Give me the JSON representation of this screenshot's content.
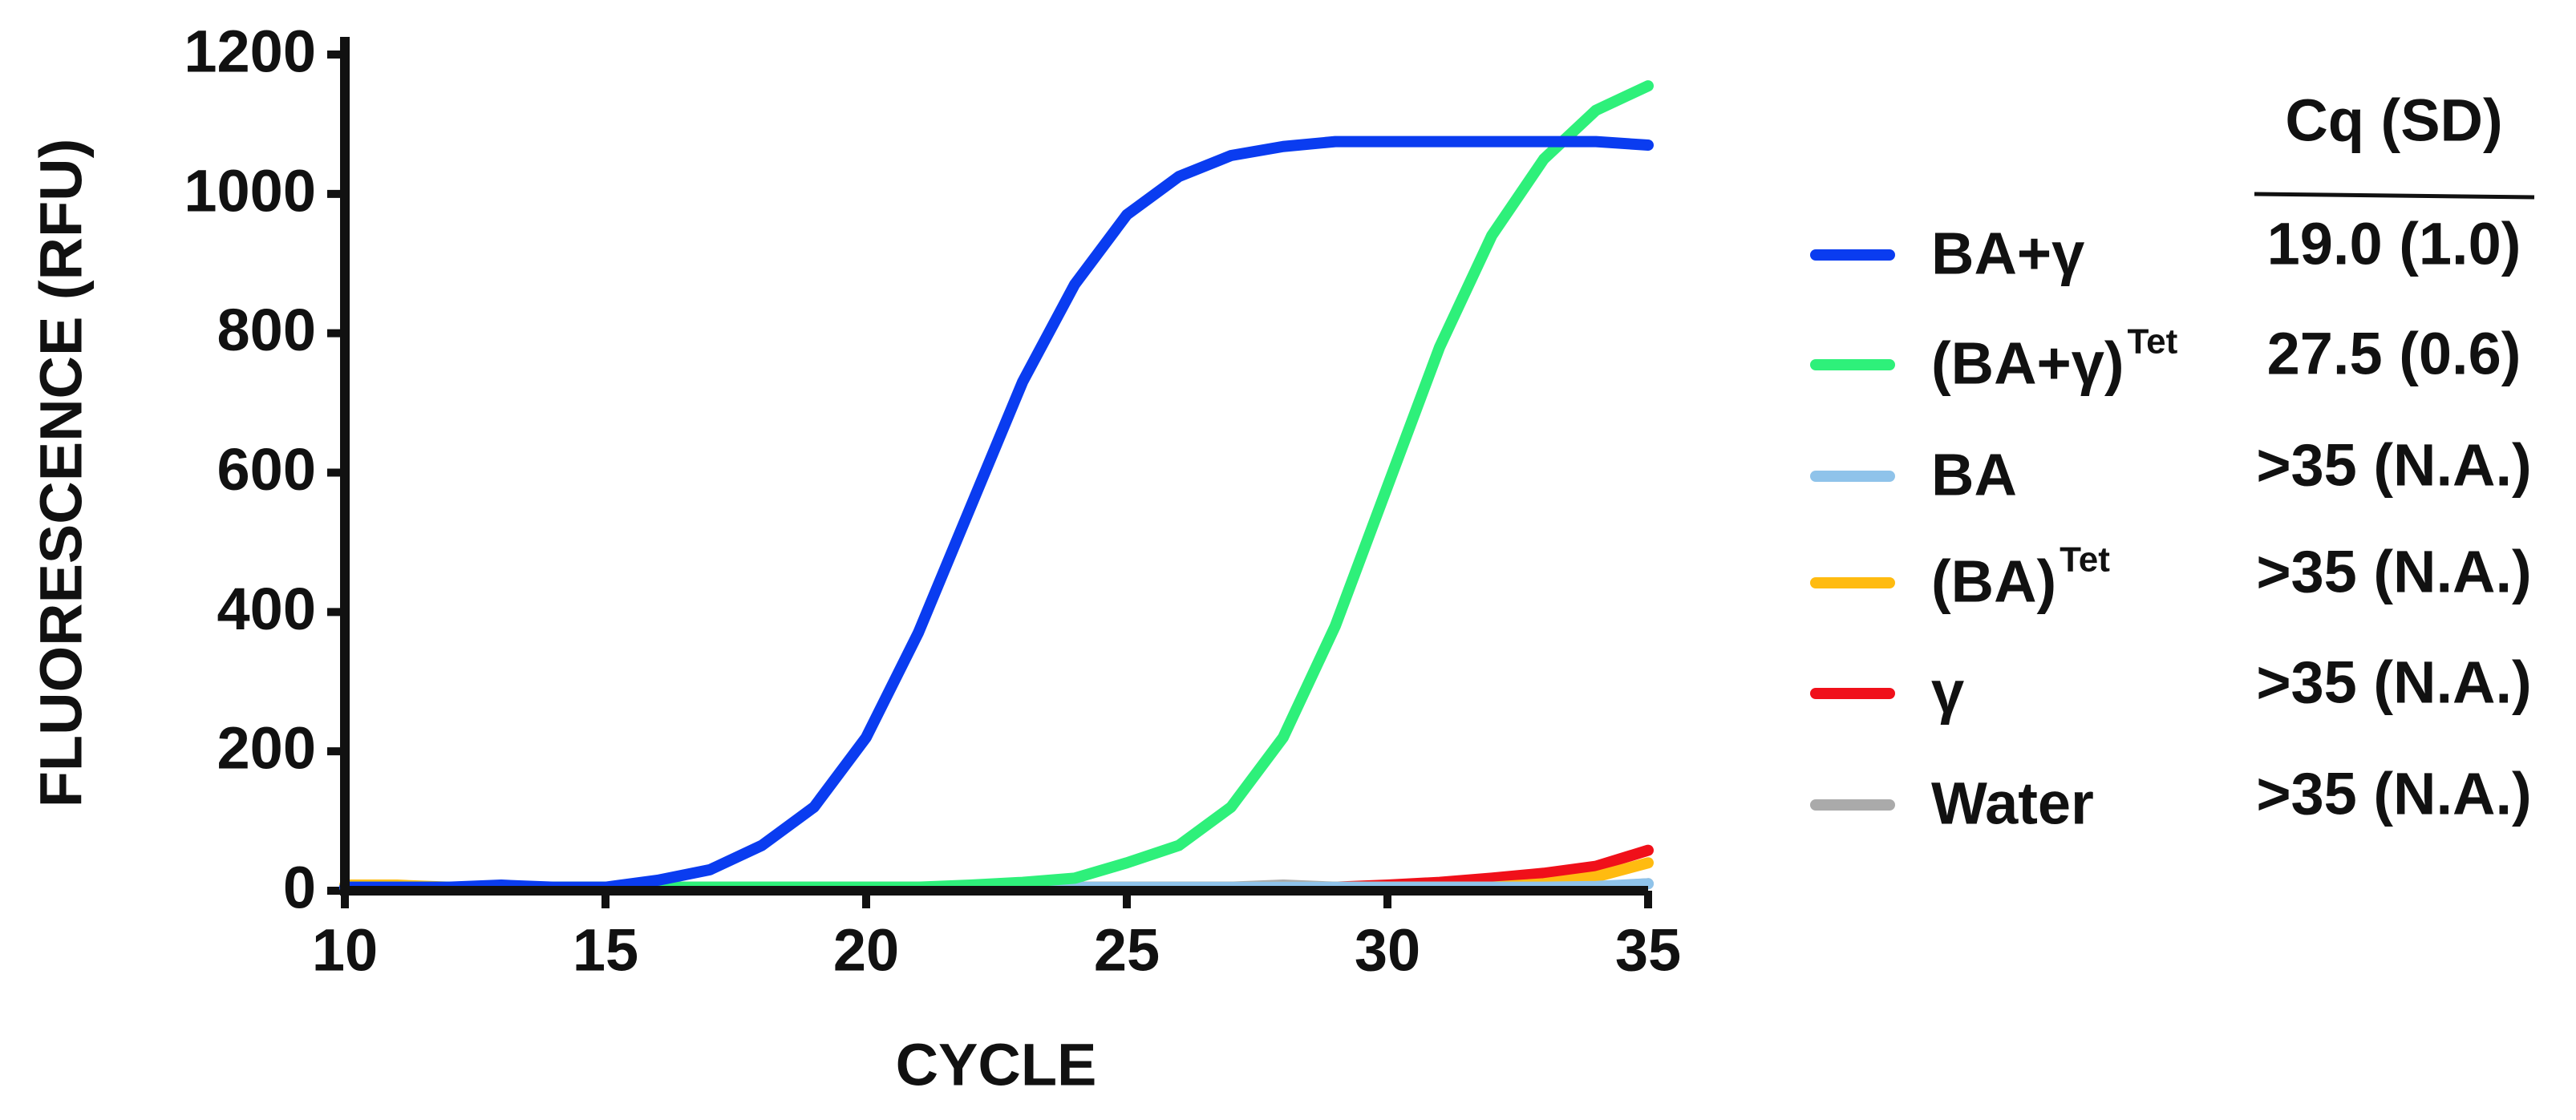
{
  "chart_data": {
    "type": "line",
    "x_label": "CYCLE",
    "y_label": "FLUORESCENCE (RFU)",
    "x": [
      10,
      11,
      12,
      13,
      14,
      15,
      16,
      17,
      18,
      19,
      20,
      21,
      22,
      23,
      24,
      25,
      26,
      27,
      28,
      29,
      30,
      31,
      32,
      33,
      34,
      35
    ],
    "xlim": [
      10,
      35
    ],
    "xticks": [
      10,
      15,
      20,
      25,
      30,
      35
    ],
    "ylim": [
      0,
      1200
    ],
    "yticks": [
      0,
      200,
      400,
      600,
      800,
      1000,
      1200
    ],
    "grid": false,
    "cq_header": "Cq (SD)",
    "series": [
      {
        "name": "BA+γ",
        "color": "#0a3cf0",
        "cq": "19.0 (1.0)",
        "values": [
          5,
          5,
          5,
          8,
          5,
          5,
          15,
          30,
          65,
          120,
          220,
          370,
          550,
          730,
          870,
          970,
          1025,
          1055,
          1068,
          1075,
          1075,
          1075,
          1075,
          1075,
          1075,
          1070
        ]
      },
      {
        "name": "(BA+γ)",
        "superscript": "Tet",
        "color": "#2ef07a",
        "cq": "27.5 (0.6)",
        "values": [
          5,
          5,
          5,
          5,
          5,
          5,
          5,
          5,
          5,
          5,
          5,
          5,
          8,
          12,
          18,
          40,
          65,
          120,
          220,
          380,
          580,
          780,
          940,
          1050,
          1120,
          1155
        ]
      },
      {
        "name": "BA",
        "color": "#8fc3ea",
        "cq": ">35 (N.A.)",
        "values": [
          5,
          5,
          5,
          5,
          5,
          5,
          5,
          5,
          5,
          5,
          5,
          5,
          5,
          5,
          5,
          5,
          5,
          5,
          5,
          5,
          5,
          5,
          5,
          5,
          6,
          10
        ]
      },
      {
        "name": "(BA)",
        "superscript": "Tet",
        "color": "#ffbb10",
        "cq": ">35 (N.A.)",
        "values": [
          8,
          8,
          5,
          5,
          5,
          5,
          5,
          5,
          5,
          5,
          5,
          5,
          5,
          5,
          5,
          5,
          5,
          5,
          5,
          5,
          5,
          5,
          5,
          10,
          20,
          40
        ]
      },
      {
        "name": "γ",
        "color": "#f0101a",
        "cq": ">35 (N.A.)",
        "values": [
          5,
          5,
          5,
          5,
          5,
          5,
          5,
          5,
          5,
          5,
          5,
          5,
          5,
          5,
          5,
          5,
          5,
          5,
          5,
          5,
          8,
          12,
          18,
          25,
          35,
          58
        ]
      },
      {
        "name": "Water",
        "color": "#aaaaaa",
        "cq": ">35 (N.A.)",
        "values": [
          5,
          5,
          5,
          5,
          5,
          5,
          5,
          5,
          5,
          5,
          5,
          5,
          5,
          5,
          5,
          5,
          5,
          5,
          8,
          5,
          5,
          5,
          5,
          5,
          5,
          10
        ]
      }
    ]
  }
}
